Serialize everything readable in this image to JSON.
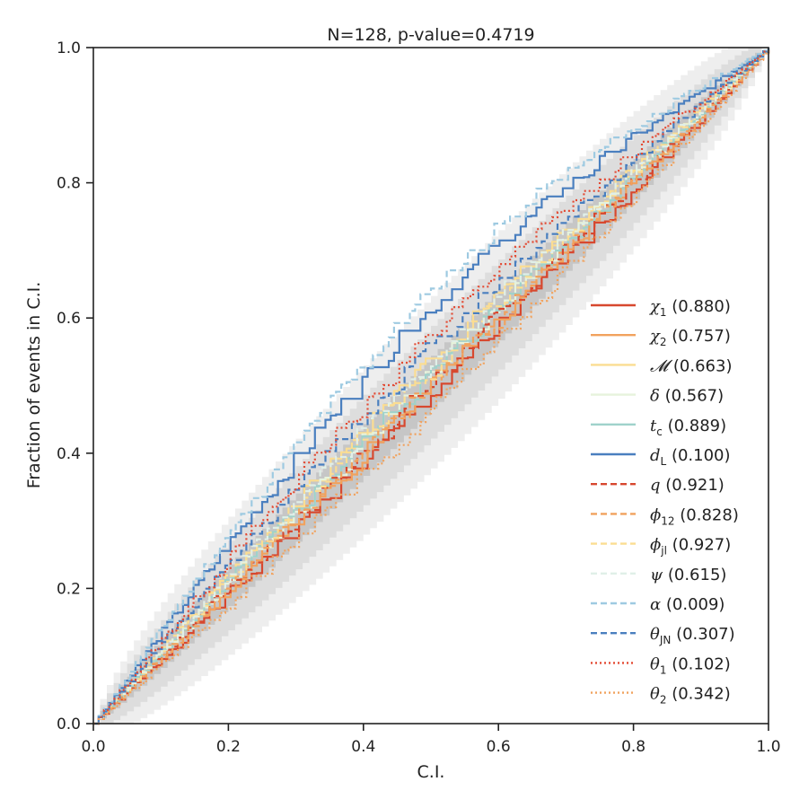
{
  "chart_data": {
    "type": "line",
    "title": "N=128, p-value=0.4719",
    "xlabel": "C.I.",
    "ylabel": "Fraction of events in C.I.",
    "xlim": [
      0,
      1
    ],
    "ylim": [
      0,
      1
    ],
    "xticks": [
      "0.0",
      "0.2",
      "0.4",
      "0.6",
      "0.8",
      "1.0"
    ],
    "yticks": [
      "0.0",
      "0.2",
      "0.4",
      "0.6",
      "0.8",
      "1.0"
    ],
    "grid": false,
    "legend_position": "lower-right",
    "n_events": 128,
    "confidence_bands": [
      {
        "level": "inner",
        "color": "#b8b8b8",
        "opacity": 0.6
      },
      {
        "level": "middle",
        "color": "#cfcfcf",
        "opacity": 0.55
      },
      {
        "level": "outer",
        "color": "#e3e3e3",
        "opacity": 0.6
      }
    ],
    "series": [
      {
        "name": "χ1",
        "sym": "χ",
        "sub": "1",
        "value": "(0.880)",
        "color": "#d7482f",
        "dash": "solid",
        "dev": -0.01
      },
      {
        "name": "χ2",
        "sym": "χ",
        "sub": "2",
        "value": "(0.757)",
        "color": "#f1a25e",
        "dash": "solid",
        "dev": 0.0
      },
      {
        "name": "M",
        "sym": "𝓜",
        "sub": "",
        "value": "(0.663)",
        "color": "#fbdd92",
        "dash": "solid",
        "dev": 0.02
      },
      {
        "name": "δ",
        "sym": "δ",
        "sub": "",
        "value": "(0.567)",
        "color": "#e6f3dc",
        "dash": "solid",
        "dev": 0.01
      },
      {
        "name": "tc",
        "sym": "t",
        "sub": "c",
        "value": "(0.889)",
        "color": "#9fd2cb",
        "dash": "solid",
        "dev": 0.01
      },
      {
        "name": "dL",
        "sym": "d",
        "sub": "L",
        "value": "(0.100)",
        "color": "#4a7fbf",
        "dash": "solid",
        "dev": 0.07
      },
      {
        "name": "q",
        "sym": "q",
        "sub": "",
        "value": "(0.921)",
        "color": "#d7482f",
        "dash": "dashed",
        "dev": 0.0
      },
      {
        "name": "ϕ12",
        "sym": "ϕ",
        "sub": "12",
        "value": "(0.828)",
        "color": "#f1a25e",
        "dash": "dashed",
        "dev": 0.0
      },
      {
        "name": "ϕjl",
        "sym": "ϕ",
        "sub": "jl",
        "value": "(0.927)",
        "color": "#fbdd92",
        "dash": "dashed",
        "dev": 0.015
      },
      {
        "name": "ψ",
        "sym": "ψ",
        "sub": "",
        "value": "(0.615)",
        "color": "#e0efe8",
        "dash": "dashed",
        "dev": 0.02
      },
      {
        "name": "α",
        "sym": "α",
        "sub": "",
        "value": "(0.009)",
        "color": "#9ecae1",
        "dash": "dashed",
        "dev": 0.085
      },
      {
        "name": "θJN",
        "sym": "θ",
        "sub": "JN",
        "value": "(0.307)",
        "color": "#4a7fbf",
        "dash": "dashed",
        "dev": 0.035
      },
      {
        "name": "θ1",
        "sym": "θ",
        "sub": "1",
        "value": "(0.102)",
        "color": "#e34a33",
        "dash": "dotted",
        "dev": 0.045
      },
      {
        "name": "θ2",
        "sym": "θ",
        "sub": "2",
        "value": "(0.342)",
        "color": "#f1a25e",
        "dash": "dotted",
        "dev": -0.025
      }
    ]
  }
}
